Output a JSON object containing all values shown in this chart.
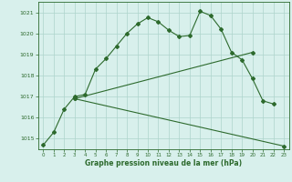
{
  "line1_x": [
    0,
    1,
    2,
    3,
    4,
    5,
    6,
    7,
    8,
    9,
    10,
    11,
    12,
    13,
    14,
    15,
    16,
    17,
    18,
    19,
    20,
    21,
    22
  ],
  "line1_y": [
    1014.7,
    1015.3,
    1016.4,
    1017.0,
    1017.1,
    1018.3,
    1018.8,
    1019.4,
    1020.0,
    1020.45,
    1020.75,
    1020.55,
    1020.15,
    1019.85,
    1019.9,
    1021.05,
    1020.85,
    1020.2,
    1019.1,
    1018.75,
    1017.85,
    1016.8,
    1016.65
  ],
  "line2_x": [
    3,
    20
  ],
  "line2_y": [
    1016.9,
    1019.1
  ],
  "line3_x": [
    3,
    23
  ],
  "line3_y": [
    1016.9,
    1014.65
  ],
  "ylim": [
    1014.5,
    1021.5
  ],
  "xlim": [
    -0.5,
    23.5
  ],
  "yticks": [
    1015,
    1016,
    1017,
    1018,
    1019,
    1020,
    1021
  ],
  "xticks": [
    0,
    1,
    2,
    3,
    4,
    5,
    6,
    7,
    8,
    9,
    10,
    11,
    12,
    13,
    14,
    15,
    16,
    17,
    18,
    19,
    20,
    21,
    22,
    23
  ],
  "xlabel": "Graphe pression niveau de la mer (hPa)",
  "line_color": "#2d6a2d",
  "bg_color": "#d8f0ec",
  "grid_color": "#aed4cc"
}
